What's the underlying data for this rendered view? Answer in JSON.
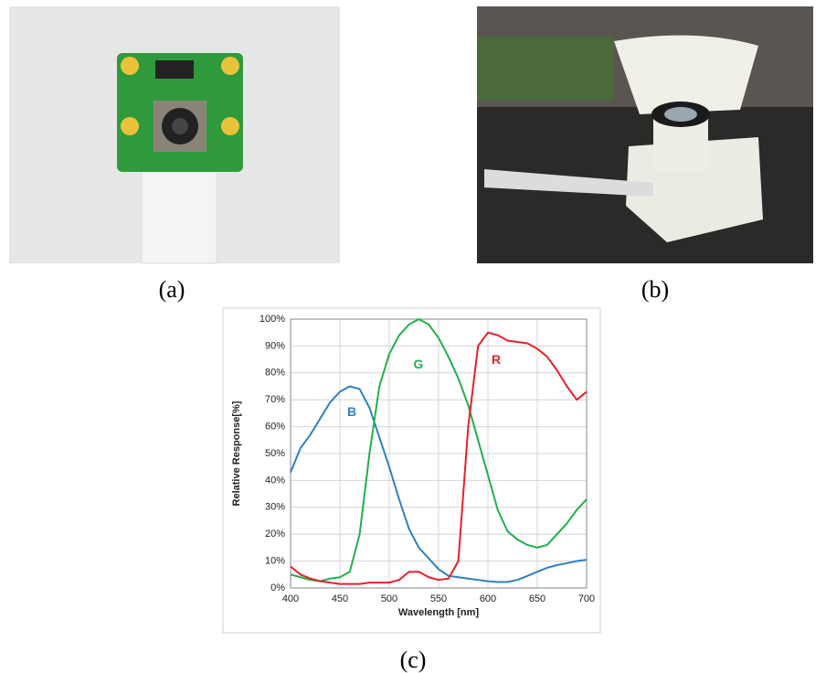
{
  "panel_labels": [
    "(a)",
    "(b)",
    "(c)"
  ],
  "chart_data": {
    "type": "line",
    "xlabel": "Wavelength [nm]",
    "ylabel": "Relative Response[%]",
    "x": [
      400,
      410,
      420,
      430,
      440,
      450,
      460,
      470,
      480,
      490,
      500,
      510,
      520,
      530,
      540,
      550,
      560,
      570,
      580,
      590,
      600,
      610,
      620,
      630,
      640,
      650,
      660,
      670,
      680,
      690,
      700
    ],
    "series": [
      {
        "name": "B",
        "color": "#2f7fc1",
        "values": [
          43,
          52,
          57,
          63,
          69,
          73,
          75,
          74,
          67,
          56,
          45,
          33,
          22,
          15,
          11,
          7,
          4.5,
          4,
          3.5,
          3,
          2.5,
          2.2,
          2.2,
          3,
          4.5,
          6,
          7.5,
          8.5,
          9.2,
          10,
          10.5
        ]
      },
      {
        "name": "G",
        "color": "#1fb04c",
        "values": [
          5,
          4,
          3,
          2.5,
          3.5,
          4,
          6,
          20,
          50,
          75,
          87,
          94,
          98,
          100,
          98,
          93,
          86,
          78,
          68,
          55,
          42,
          29,
          21,
          18,
          16,
          15,
          16,
          20,
          24,
          29,
          33
        ]
      },
      {
        "name": "R",
        "color": "#e8202a",
        "values": [
          8,
          5,
          3.5,
          2.5,
          2,
          1.5,
          1.5,
          1.5,
          2,
          2,
          2,
          3,
          6,
          6,
          4,
          3,
          3.5,
          10,
          60,
          90,
          95,
          94,
          92,
          91.5,
          91,
          89,
          86,
          81,
          75,
          70,
          73
        ]
      }
    ],
    "xlim": [
      400,
      700
    ],
    "xticks": [
      400,
      450,
      500,
      550,
      600,
      650,
      700
    ],
    "ylim": [
      0,
      100
    ],
    "yticks": [
      {
        "value": 0,
        "label": "0%"
      },
      {
        "value": 10,
        "label": "10%"
      },
      {
        "value": 20,
        "label": "20%"
      },
      {
        "value": 30,
        "label": "30%"
      },
      {
        "value": 40,
        "label": "40%"
      },
      {
        "value": 50,
        "label": "50%"
      },
      {
        "value": 60,
        "label": "60%"
      },
      {
        "value": 70,
        "label": "70%"
      },
      {
        "value": 80,
        "label": "80%"
      },
      {
        "value": 90,
        "label": "90%"
      },
      {
        "value": 100,
        "label": "100%"
      }
    ],
    "grid": true
  }
}
